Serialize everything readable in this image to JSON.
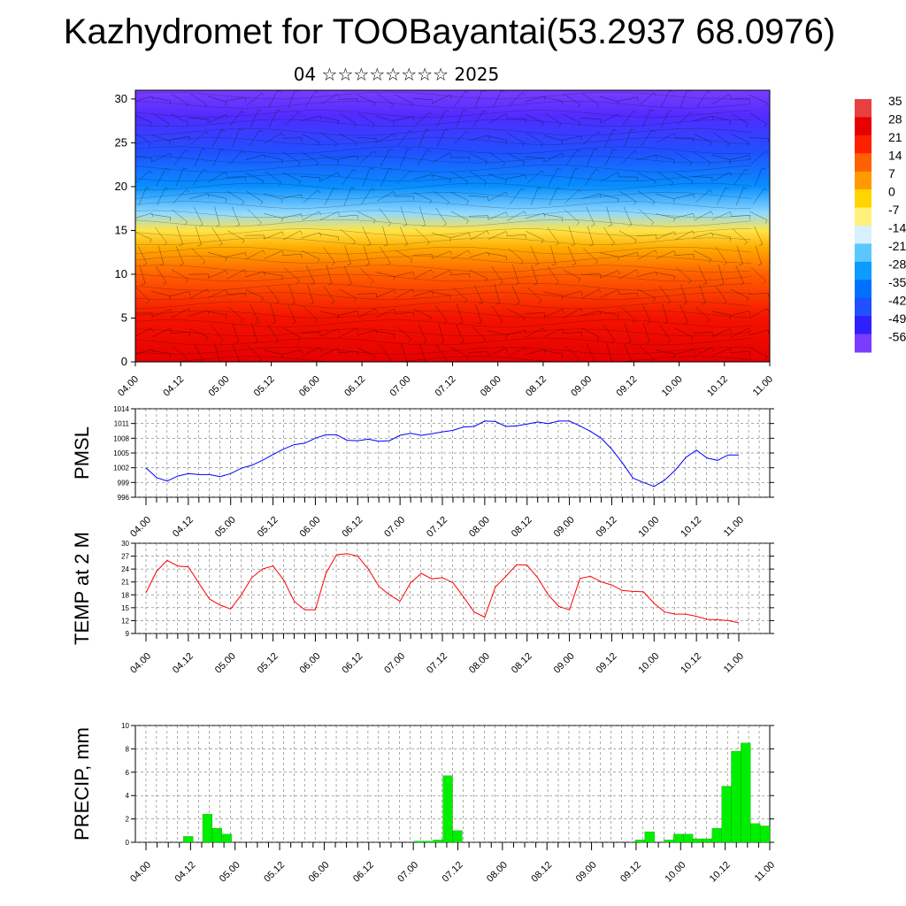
{
  "title": "Kazhydromet for TOOBayantai(53.2937 68.0976)",
  "subtitle": "04 ☆☆☆☆☆☆☆☆ 2025",
  "time_labels": [
    "04.00",
    "04.12",
    "05.00",
    "05.12",
    "06.00",
    "06.12",
    "07.00",
    "07.12",
    "08.00",
    "08.12",
    "09.00",
    "09.12",
    "10.00",
    "10.12",
    "11.00"
  ],
  "chart_data": [
    {
      "type": "heatmap",
      "title": "",
      "x_categories": [
        "04.00",
        "04.12",
        "05.00",
        "05.12",
        "06.00",
        "06.12",
        "07.00",
        "07.12",
        "08.00",
        "08.12",
        "09.00",
        "09.12",
        "10.00",
        "10.12",
        "11.00"
      ],
      "ylim": [
        0,
        31
      ],
      "y_ticks": [
        0,
        5,
        10,
        15,
        20,
        25,
        30
      ],
      "colorbar": {
        "labels": [
          "35",
          "28",
          "21",
          "14",
          "7",
          "0",
          "-7",
          "-14",
          "-21",
          "-28",
          "-35",
          "-42",
          "-49",
          "-56"
        ],
        "colors": [
          "#e84040",
          "#e60000",
          "#ff2000",
          "#ff6000",
          "#ff9a00",
          "#ffd400",
          "#fff07a",
          "#d8f0ff",
          "#5ac8ff",
          "#0a9cff",
          "#0070ff",
          "#2050ff",
          "#3020ff",
          "#7a3cff"
        ]
      },
      "overlay": "wind barbs / streamlines",
      "profile": [
        {
          "y": 0,
          "value": 28
        },
        {
          "y": 5,
          "value": 24
        },
        {
          "y": 10,
          "value": 14
        },
        {
          "y": 13,
          "value": 5
        },
        {
          "y": 15,
          "value": -4
        },
        {
          "y": 17,
          "value": -18
        },
        {
          "y": 20,
          "value": -30
        },
        {
          "y": 24,
          "value": -42
        },
        {
          "y": 28,
          "value": -52
        },
        {
          "y": 31,
          "value": -56
        }
      ]
    },
    {
      "type": "line",
      "ylabel": "PMSL",
      "ylim": [
        996,
        1014
      ],
      "y_ticks": [
        996,
        999,
        1002,
        1005,
        1008,
        1011,
        1014
      ],
      "color": "#0000ff",
      "x": [
        0,
        1,
        2,
        3,
        4,
        5,
        6,
        7,
        8,
        9,
        10,
        11,
        12,
        13,
        14,
        15,
        16,
        17,
        18,
        19,
        20,
        21,
        22,
        23,
        24,
        25,
        26,
        27,
        28,
        29,
        30,
        31,
        32,
        33,
        34,
        35,
        36,
        37,
        38,
        39,
        40,
        41,
        42,
        43,
        44,
        45,
        46,
        47,
        48,
        49,
        50,
        51,
        52,
        53,
        54,
        55,
        56
      ],
      "values": [
        1002,
        1000,
        999.3,
        1000.3,
        1000.8,
        1000.6,
        1000.6,
        1000.2,
        1000.8,
        1001.9,
        1002.5,
        1003.5,
        1004.7,
        1005.8,
        1006.7,
        1007,
        1008,
        1008.7,
        1008.7,
        1007.6,
        1007.5,
        1007.8,
        1007.4,
        1007.5,
        1008.6,
        1009,
        1008.6,
        1008.9,
        1009.3,
        1009.6,
        1010.3,
        1010.4,
        1011.5,
        1011.4,
        1010.4,
        1010.5,
        1010.9,
        1011.3,
        1011,
        1011.5,
        1011.5,
        1010.5,
        1009.4,
        1008,
        1005.8,
        1003,
        999.9,
        999,
        998.2,
        999.5,
        1001.5,
        1004.1,
        1005.6,
        1004,
        1003.5,
        1004.6,
        1004.6
      ]
    },
    {
      "type": "line",
      "ylabel": "TEMP at 2 M",
      "ylim": [
        9,
        30
      ],
      "y_ticks": [
        9,
        12,
        15,
        18,
        21,
        24,
        27,
        30
      ],
      "color": "#ff0000",
      "x": [
        0,
        1,
        2,
        3,
        4,
        5,
        6,
        7,
        8,
        9,
        10,
        11,
        12,
        13,
        14,
        15,
        16,
        17,
        18,
        19,
        20,
        21,
        22,
        23,
        24,
        25,
        26,
        27,
        28,
        29,
        30,
        31,
        32,
        33,
        34,
        35,
        36,
        37,
        38,
        39,
        40,
        41,
        42,
        43,
        44,
        45,
        46,
        47,
        48,
        49,
        50,
        51,
        52,
        53,
        54,
        55,
        56
      ],
      "values": [
        18.5,
        23.5,
        26,
        24.7,
        24.5,
        20.7,
        17,
        15.6,
        14.7,
        18,
        22,
        24,
        24.7,
        21.5,
        16.5,
        14.5,
        14.5,
        23,
        27.3,
        27.6,
        27,
        24,
        20,
        18,
        16.5,
        20.8,
        23,
        21.7,
        22,
        20.8,
        17.5,
        14,
        12.8,
        19.8,
        22.3,
        25,
        24.9,
        22,
        18,
        15.3,
        14.5,
        21.8,
        22.3,
        21,
        20.3,
        19,
        18.8,
        18.7,
        16,
        14,
        13.5,
        13.5,
        13,
        12.3,
        12.2,
        12,
        11.5
      ]
    },
    {
      "type": "bar",
      "ylabel": "PRECIP, mm",
      "ylim": [
        0,
        10
      ],
      "y_ticks": [
        0,
        2,
        4,
        6,
        8,
        10
      ],
      "color": "#00ee00",
      "values": [
        0,
        0,
        0,
        0,
        0,
        0.5,
        0,
        2.4,
        1.2,
        0.7,
        0,
        0,
        0,
        0,
        0,
        0,
        0,
        0,
        0,
        0,
        0,
        0,
        0,
        0,
        0,
        0,
        0,
        0,
        0,
        0.1,
        0.1,
        0.2,
        5.7,
        1,
        0,
        0,
        0,
        0,
        0,
        0,
        0,
        0,
        0,
        0,
        0,
        0,
        0,
        0,
        0,
        0,
        0,
        0,
        0.2,
        0.9,
        0,
        0.2,
        0.7,
        0.7,
        0.3,
        0.3,
        1.2,
        4.8,
        7.8,
        8.5,
        1.6,
        1.4
      ]
    }
  ]
}
